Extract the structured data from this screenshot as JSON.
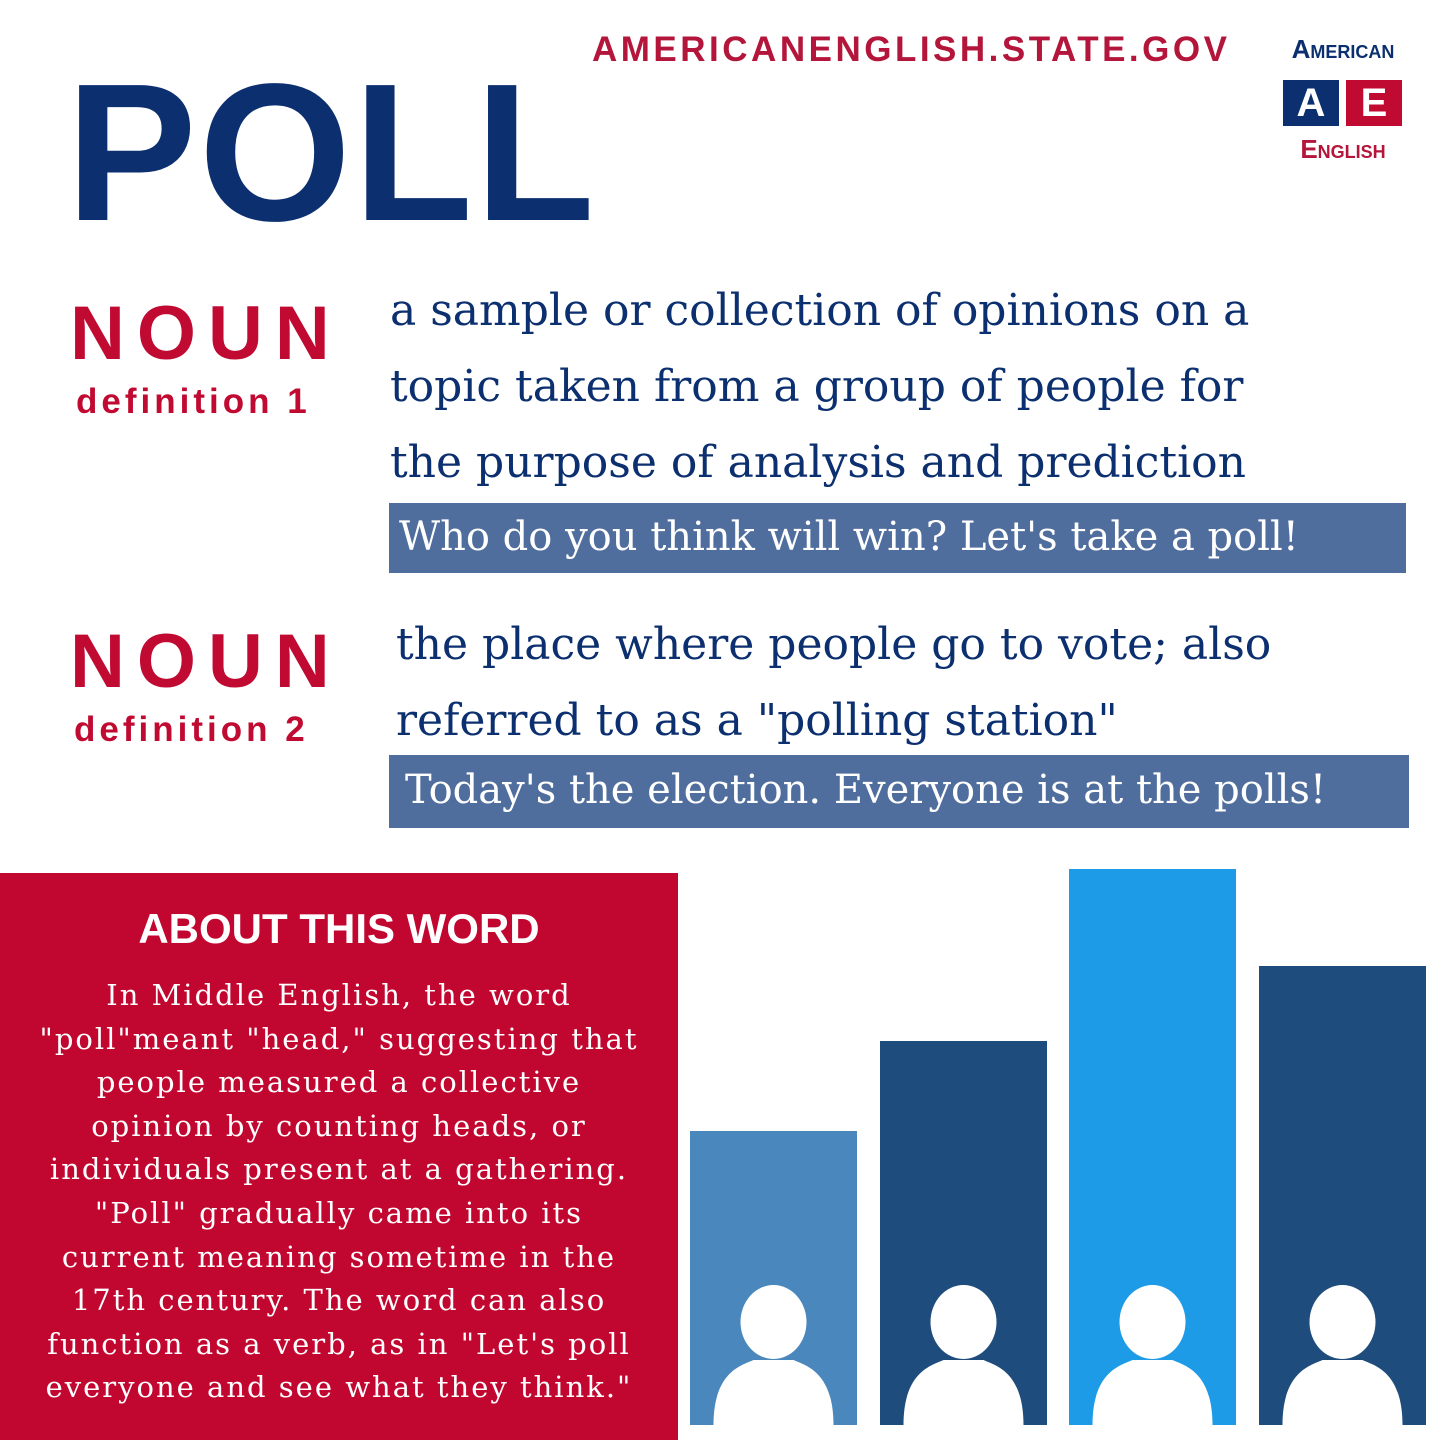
{
  "header": {
    "site": "AMERICANENGLISH.STATE.GOV",
    "word": "POLL",
    "logo": {
      "top": "American",
      "letter_a": "A",
      "letter_e": "E",
      "bottom": "English"
    }
  },
  "definitions": [
    {
      "pos": "NOUN",
      "label": "definition 1",
      "lines": [
        "a sample or collection of opinions on a",
        "topic taken from a group of people for",
        "the purpose of analysis and prediction"
      ],
      "example": "Who do you think will win? Let's take a poll!"
    },
    {
      "pos": "NOUN",
      "label": "definition 2",
      "lines": [
        "the place where people go to vote; also",
        "referred to as a \"polling station\""
      ],
      "example": "Today's the election. Everyone is at the polls!"
    }
  ],
  "about": {
    "title": "ABOUT THIS WORD",
    "lines": [
      "In Middle English, the word",
      "\"poll\"meant \"head,\" suggesting that",
      "people measured a collective",
      "opinion by counting heads, or",
      "individuals present at a gathering.",
      "\"Poll\" gradually came into its",
      "current meaning sometime in the",
      "17th century. The word can also",
      "function as a verb, as in \"Let's poll",
      "everyone and see what they think.\""
    ]
  }
}
